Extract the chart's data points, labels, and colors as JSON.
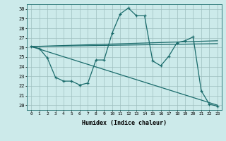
{
  "xlabel": "Humidex (Indice chaleur)",
  "bg_color": "#cceaea",
  "grid_color": "#9fbfbf",
  "line_color": "#1a6b6b",
  "xlim": [
    -0.5,
    23.5
  ],
  "ylim": [
    19.5,
    30.5
  ],
  "xticks": [
    0,
    1,
    2,
    3,
    4,
    5,
    6,
    7,
    8,
    9,
    10,
    11,
    12,
    13,
    14,
    15,
    16,
    17,
    18,
    19,
    20,
    21,
    22,
    23
  ],
  "yticks": [
    20,
    21,
    22,
    23,
    24,
    25,
    26,
    27,
    28,
    29,
    30
  ],
  "line1_x": [
    0,
    1,
    2,
    3,
    4,
    5,
    6,
    7,
    8,
    9,
    10,
    11,
    12,
    13,
    14,
    15,
    16,
    17,
    18,
    19,
    20,
    21,
    22,
    23
  ],
  "line1_y": [
    26.1,
    25.9,
    24.9,
    22.9,
    22.5,
    22.5,
    22.1,
    22.3,
    24.7,
    24.7,
    27.5,
    29.5,
    30.1,
    29.3,
    29.3,
    24.6,
    24.1,
    25.1,
    26.5,
    26.7,
    27.1,
    21.5,
    20.1,
    19.9
  ],
  "line2_x": [
    0,
    23
  ],
  "line2_y": [
    26.1,
    26.7
  ],
  "line3_x": [
    0,
    23
  ],
  "line3_y": [
    26.1,
    26.4
  ],
  "line4_x": [
    0,
    23
  ],
  "line4_y": [
    26.1,
    20.0
  ]
}
